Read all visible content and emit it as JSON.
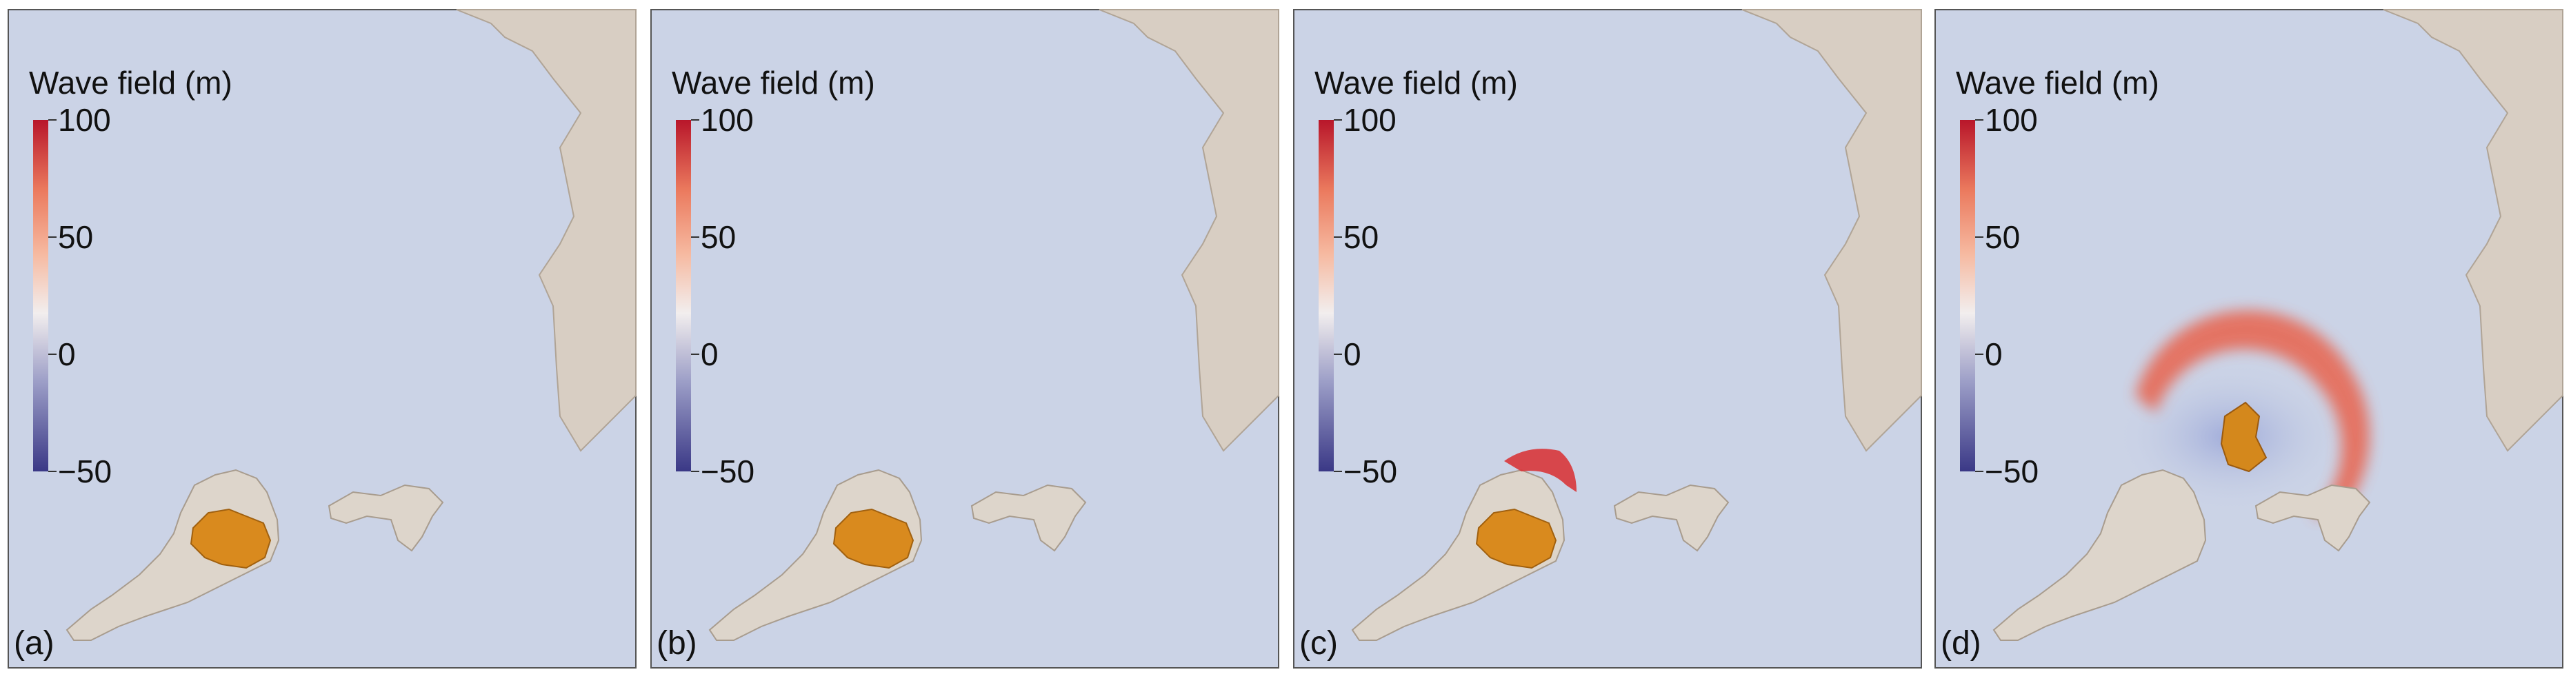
{
  "panels": [
    {
      "label": "(a)",
      "colorbar": {
        "title": "Wave field (m)",
        "clim": [
          -50,
          100
        ],
        "ticks": [
          100,
          50,
          0,
          {
            "value": -50,
            "label": "−50"
          }
        ]
      }
    },
    {
      "label": "(b)",
      "colorbar": {
        "title": "Wave field (m)",
        "clim": [
          -50,
          100
        ],
        "ticks": [
          100,
          50,
          0,
          {
            "value": -50,
            "label": "−50"
          }
        ]
      }
    },
    {
      "label": "(c)",
      "colorbar": {
        "title": "Wave field (m)",
        "clim": [
          -50,
          100
        ],
        "ticks": [
          100,
          50,
          0,
          {
            "value": -50,
            "label": "−50"
          }
        ]
      }
    },
    {
      "label": "(d)",
      "colorbar": {
        "title": "Wave field (m)",
        "clim": [
          -50,
          100
        ],
        "ticks": [
          100,
          50,
          0,
          {
            "value": -50,
            "label": "−50"
          }
        ]
      }
    }
  ]
}
